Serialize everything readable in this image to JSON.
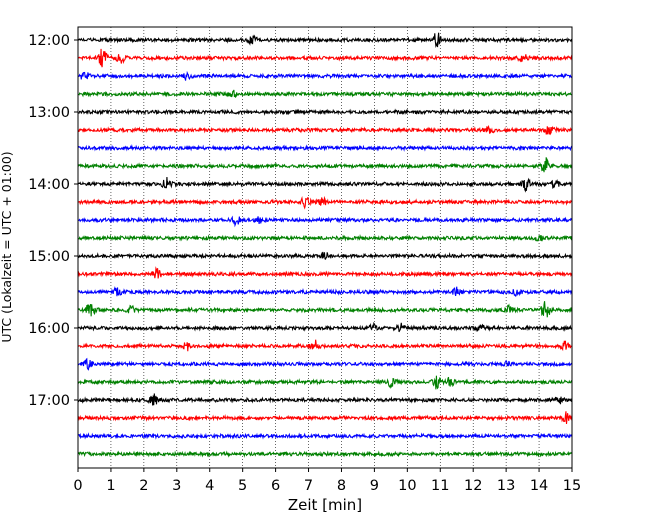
{
  "chart_data": {
    "type": "line",
    "subtype": "helicorder",
    "title": "",
    "xlabel": "Zeit  [min]",
    "ylabel": "UTC (Lokalzeit = UTC + 01:00)",
    "xlim": [
      0,
      15
    ],
    "x_ticks": [
      "0",
      "1",
      "2",
      "3",
      "4",
      "5",
      "6",
      "7",
      "8",
      "9",
      "10",
      "11",
      "12",
      "13",
      "14",
      "15"
    ],
    "y_ticks": [
      "12:00",
      "13:00",
      "14:00",
      "15:00",
      "16:00",
      "17:00"
    ],
    "grid": "vertical dotted lines at every minute",
    "trace_colors": [
      "#000000",
      "#ff0000",
      "#0000ff",
      "#008000"
    ],
    "traces": [
      {
        "start": "12:00",
        "color": "#000000",
        "events": [
          {
            "x": 5.3,
            "amp": 4
          },
          {
            "x": 10.9,
            "amp": 7
          }
        ]
      },
      {
        "start": "12:15",
        "color": "#ff0000",
        "events": [
          {
            "x": 0.7,
            "amp": 5
          },
          {
            "x": 0.75,
            "amp": 6
          },
          {
            "x": 1.3,
            "amp": 4
          },
          {
            "x": 13.5,
            "amp": 4
          }
        ]
      },
      {
        "start": "12:30",
        "color": "#0000ff",
        "events": [
          {
            "x": 0.2,
            "amp": 4
          },
          {
            "x": 3.3,
            "amp": 3
          }
        ]
      },
      {
        "start": "12:45",
        "color": "#008000",
        "events": [
          {
            "x": 4.7,
            "amp": 3
          }
        ]
      },
      {
        "start": "13:00",
        "color": "#000000",
        "events": []
      },
      {
        "start": "13:15",
        "color": "#ff0000",
        "events": [
          {
            "x": 12.5,
            "amp": 3
          },
          {
            "x": 14.3,
            "amp": 5
          }
        ]
      },
      {
        "start": "13:30",
        "color": "#0000ff",
        "events": []
      },
      {
        "start": "13:45",
        "color": "#008000",
        "events": [
          {
            "x": 14.2,
            "amp": 8
          }
        ]
      },
      {
        "start": "14:00",
        "color": "#000000",
        "events": [
          {
            "x": 2.7,
            "amp": 6
          },
          {
            "x": 13.6,
            "amp": 6
          },
          {
            "x": 14.5,
            "amp": 4
          }
        ]
      },
      {
        "start": "14:15",
        "color": "#ff0000",
        "events": [
          {
            "x": 6.9,
            "amp": 5
          },
          {
            "x": 7.4,
            "amp": 4
          }
        ]
      },
      {
        "start": "14:30",
        "color": "#0000ff",
        "events": [
          {
            "x": 4.8,
            "amp": 4
          },
          {
            "x": 5.5,
            "amp": 3
          }
        ]
      },
      {
        "start": "14:45",
        "color": "#008000",
        "events": [
          {
            "x": 14.0,
            "amp": 3
          }
        ]
      },
      {
        "start": "15:00",
        "color": "#000000",
        "events": [
          {
            "x": 7.5,
            "amp": 3
          }
        ]
      },
      {
        "start": "15:15",
        "color": "#ff0000",
        "events": [
          {
            "x": 2.4,
            "amp": 5
          }
        ]
      },
      {
        "start": "15:30",
        "color": "#0000ff",
        "events": [
          {
            "x": 1.2,
            "amp": 4
          },
          {
            "x": 11.5,
            "amp": 4
          },
          {
            "x": 13.3,
            "amp": 3
          }
        ]
      },
      {
        "start": "15:45",
        "color": "#008000",
        "events": [
          {
            "x": 0.4,
            "amp": 9
          },
          {
            "x": 1.6,
            "amp": 4
          },
          {
            "x": 13.1,
            "amp": 4
          },
          {
            "x": 14.2,
            "amp": 8
          }
        ]
      },
      {
        "start": "16:00",
        "color": "#000000",
        "events": [
          {
            "x": 9.0,
            "amp": 4
          },
          {
            "x": 9.8,
            "amp": 4
          },
          {
            "x": 12.2,
            "amp": 3
          }
        ]
      },
      {
        "start": "16:15",
        "color": "#ff0000",
        "events": [
          {
            "x": 3.3,
            "amp": 4
          },
          {
            "x": 7.2,
            "amp": 5
          },
          {
            "x": 14.8,
            "amp": 4
          }
        ]
      },
      {
        "start": "16:30",
        "color": "#0000ff",
        "events": [
          {
            "x": 0.3,
            "amp": 5
          },
          {
            "x": 13.0,
            "amp": 3
          }
        ]
      },
      {
        "start": "16:45",
        "color": "#008000",
        "events": [
          {
            "x": 9.5,
            "amp": 4
          },
          {
            "x": 10.9,
            "amp": 6
          },
          {
            "x": 11.3,
            "amp": 4
          }
        ]
      },
      {
        "start": "17:00",
        "color": "#000000",
        "events": [
          {
            "x": 2.3,
            "amp": 5
          },
          {
            "x": 14.6,
            "amp": 3
          }
        ]
      },
      {
        "start": "17:15",
        "color": "#ff0000",
        "events": [
          {
            "x": 14.8,
            "amp": 5
          }
        ]
      },
      {
        "start": "17:30",
        "color": "#0000ff",
        "events": []
      },
      {
        "start": "17:45",
        "color": "#008000",
        "events": []
      }
    ]
  }
}
